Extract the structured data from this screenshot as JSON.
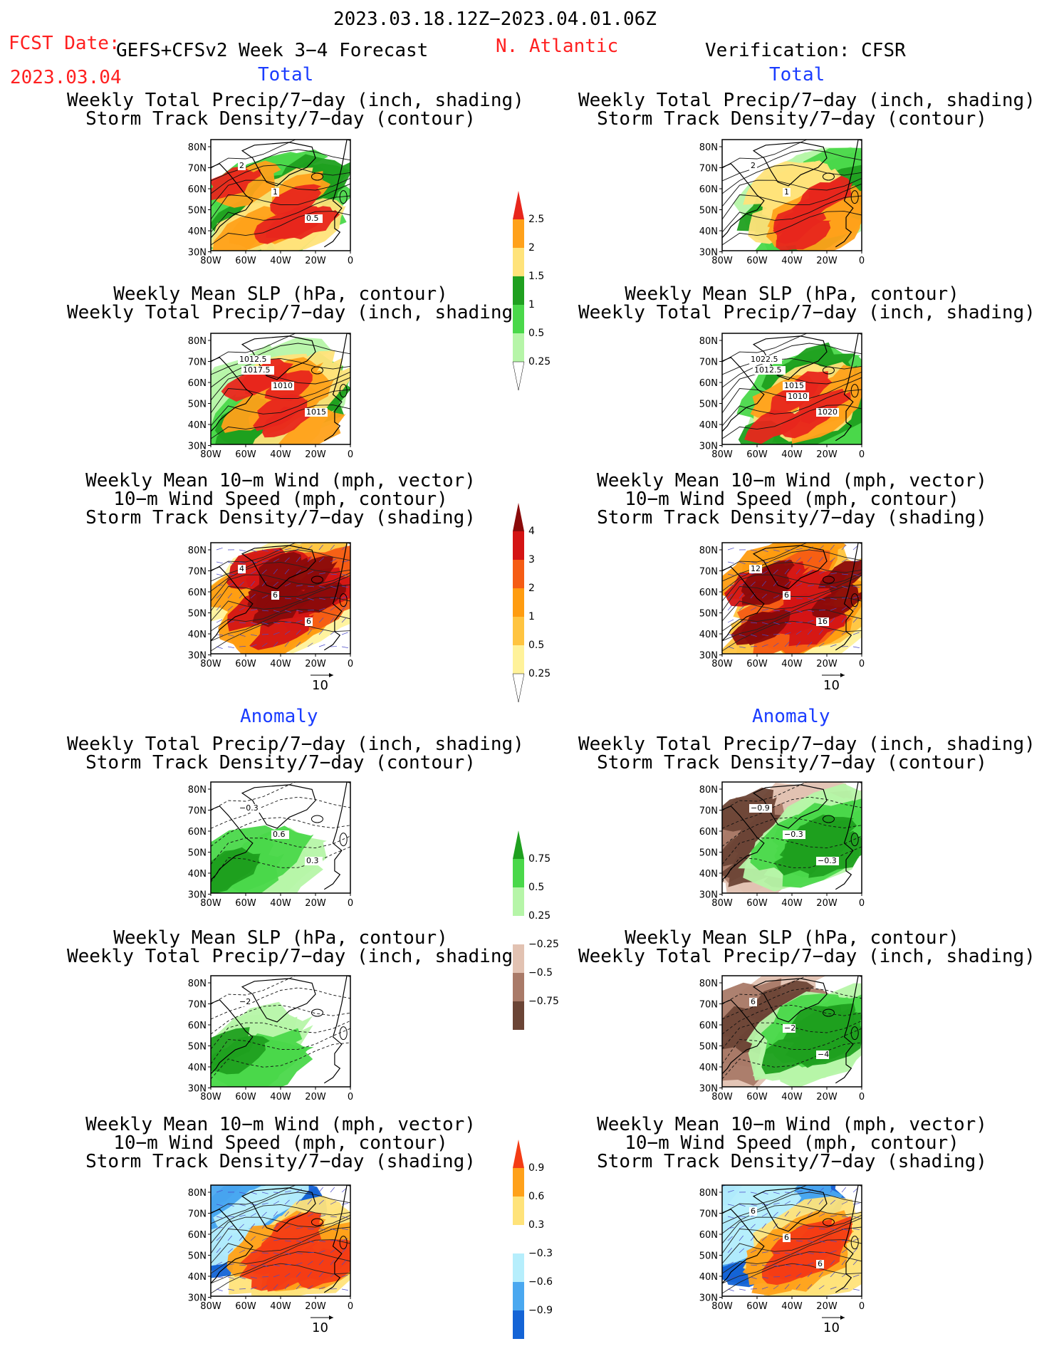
{
  "header": {
    "date_range": "2023.03.18.12Z−2023.04.01.06Z",
    "fcst_label": "FCST Date:",
    "model_label": "GEFS+CFSv2 Week 3−4 Forecast",
    "fcst_date": "2023.03.04",
    "region": "N. Atlantic",
    "verification": "Verification: CFSR"
  },
  "sections": {
    "total": "Total",
    "anomaly": "Anomaly"
  },
  "panel_titles": {
    "precip_track": [
      "Weekly Total Precip/7−day (inch, shading)",
      "Storm Track Density/7−day (contour)"
    ],
    "slp_precip": [
      "Weekly Mean SLP (hPa, contour)",
      "Weekly Total Precip/7−day (inch, shading)"
    ],
    "wind_track": [
      "Weekly Mean 10−m Wind (mph, vector)",
      "10−m Wind Speed (mph, contour)",
      "Storm Track Density/7−day (shading)"
    ]
  },
  "axes": {
    "lat_ticks": [
      "80N",
      "70N",
      "60N",
      "50N",
      "40N",
      "30N"
    ],
    "lon_ticks": [
      "80W",
      "60W",
      "40W",
      "20W",
      "0"
    ],
    "vector_ref": "10"
  },
  "colorbars": [
    {
      "id": "precip_total",
      "labels": [
        "2.5",
        "2",
        "1.5",
        "1",
        "0.5",
        "0.25"
      ],
      "colors": [
        "#e8261c",
        "#ffa11a",
        "#ffe37a",
        "#1fa01f",
        "#4ad84a",
        "#b6f5a8"
      ]
    },
    {
      "id": "track_total",
      "labels": [
        "4",
        "3",
        "2",
        "1",
        "0.5",
        "0.25"
      ],
      "colors": [
        "#8a0a0a",
        "#d41414",
        "#f55c14",
        "#ff9c10",
        "#ffc440",
        "#fff29a"
      ]
    },
    {
      "id": "precip_anom",
      "labels": [
        "0.75",
        "0.5",
        "0.25",
        "−0.25",
        "−0.5",
        "−0.75"
      ],
      "colors": [
        "#1fa01f",
        "#4ad84a",
        "#b6f5a8",
        "#ffffff",
        "#e2c2b2",
        "#a97a68",
        "#6b4536"
      ]
    },
    {
      "id": "track_anom",
      "labels": [
        "0.9",
        "0.6",
        "0.3",
        "−0.3",
        "−0.6",
        "−0.9"
      ],
      "colors": [
        "#f43c14",
        "#ffa11a",
        "#ffe37a",
        "#ffffff",
        "#b6eefc",
        "#4aa8f0",
        "#1464d6"
      ]
    }
  ],
  "panels": [
    {
      "id": "fc_precip_track",
      "contour_labels": [
        "2",
        "1",
        "0.5"
      ]
    },
    {
      "id": "fc_slp_precip",
      "contour_labels": [
        "1012.5",
        "1010",
        "1015",
        "1017.5"
      ]
    },
    {
      "id": "fc_wind_track",
      "contour_labels": [
        "4",
        "6",
        "6"
      ]
    },
    {
      "id": "ob_precip_track",
      "contour_labels": [
        "2",
        "1"
      ]
    },
    {
      "id": "ob_slp_precip",
      "contour_labels": [
        "1022.5",
        "1015",
        "1020",
        "1012.5",
        "1010"
      ]
    },
    {
      "id": "ob_wind_track",
      "contour_labels": [
        "12",
        "6",
        "16"
      ]
    },
    {
      "id": "fa_precip_track",
      "contour_labels": [
        "−0.3",
        "0.6",
        "0.3"
      ]
    },
    {
      "id": "fa_slp_precip",
      "contour_labels": [
        "−2"
      ]
    },
    {
      "id": "fa_wind_track",
      "contour_labels": []
    },
    {
      "id": "oa_precip_track",
      "contour_labels": [
        "−0.9",
        "−0.3",
        "−0.3"
      ]
    },
    {
      "id": "oa_slp_precip",
      "contour_labels": [
        "6",
        "−2",
        "−4"
      ]
    },
    {
      "id": "oa_wind_track",
      "contour_labels": [
        "6",
        "6",
        "6"
      ]
    }
  ],
  "chart_data": {
    "type": "heatmap",
    "title": "2023.03.18.12Z−2023.04.01.06Z",
    "region": "N. Atlantic",
    "lat_range": [
      25,
      85
    ],
    "lon_range": [
      -80,
      0
    ],
    "columns": [
      "GEFS+CFSv2 Week 3−4 Forecast",
      "Verification: CFSR"
    ],
    "rows": [
      "Total",
      "Anomaly"
    ],
    "variables": [
      "Weekly Total Precip/7−day (inch, shading)",
      "Storm Track Density/7−day (contour)",
      "Weekly Mean SLP (hPa, contour)",
      "Weekly Mean 10−m Wind (mph, vector)",
      "10−m Wind Speed (mph, contour)",
      "Storm Track Density/7−day (shading)"
    ]
  }
}
